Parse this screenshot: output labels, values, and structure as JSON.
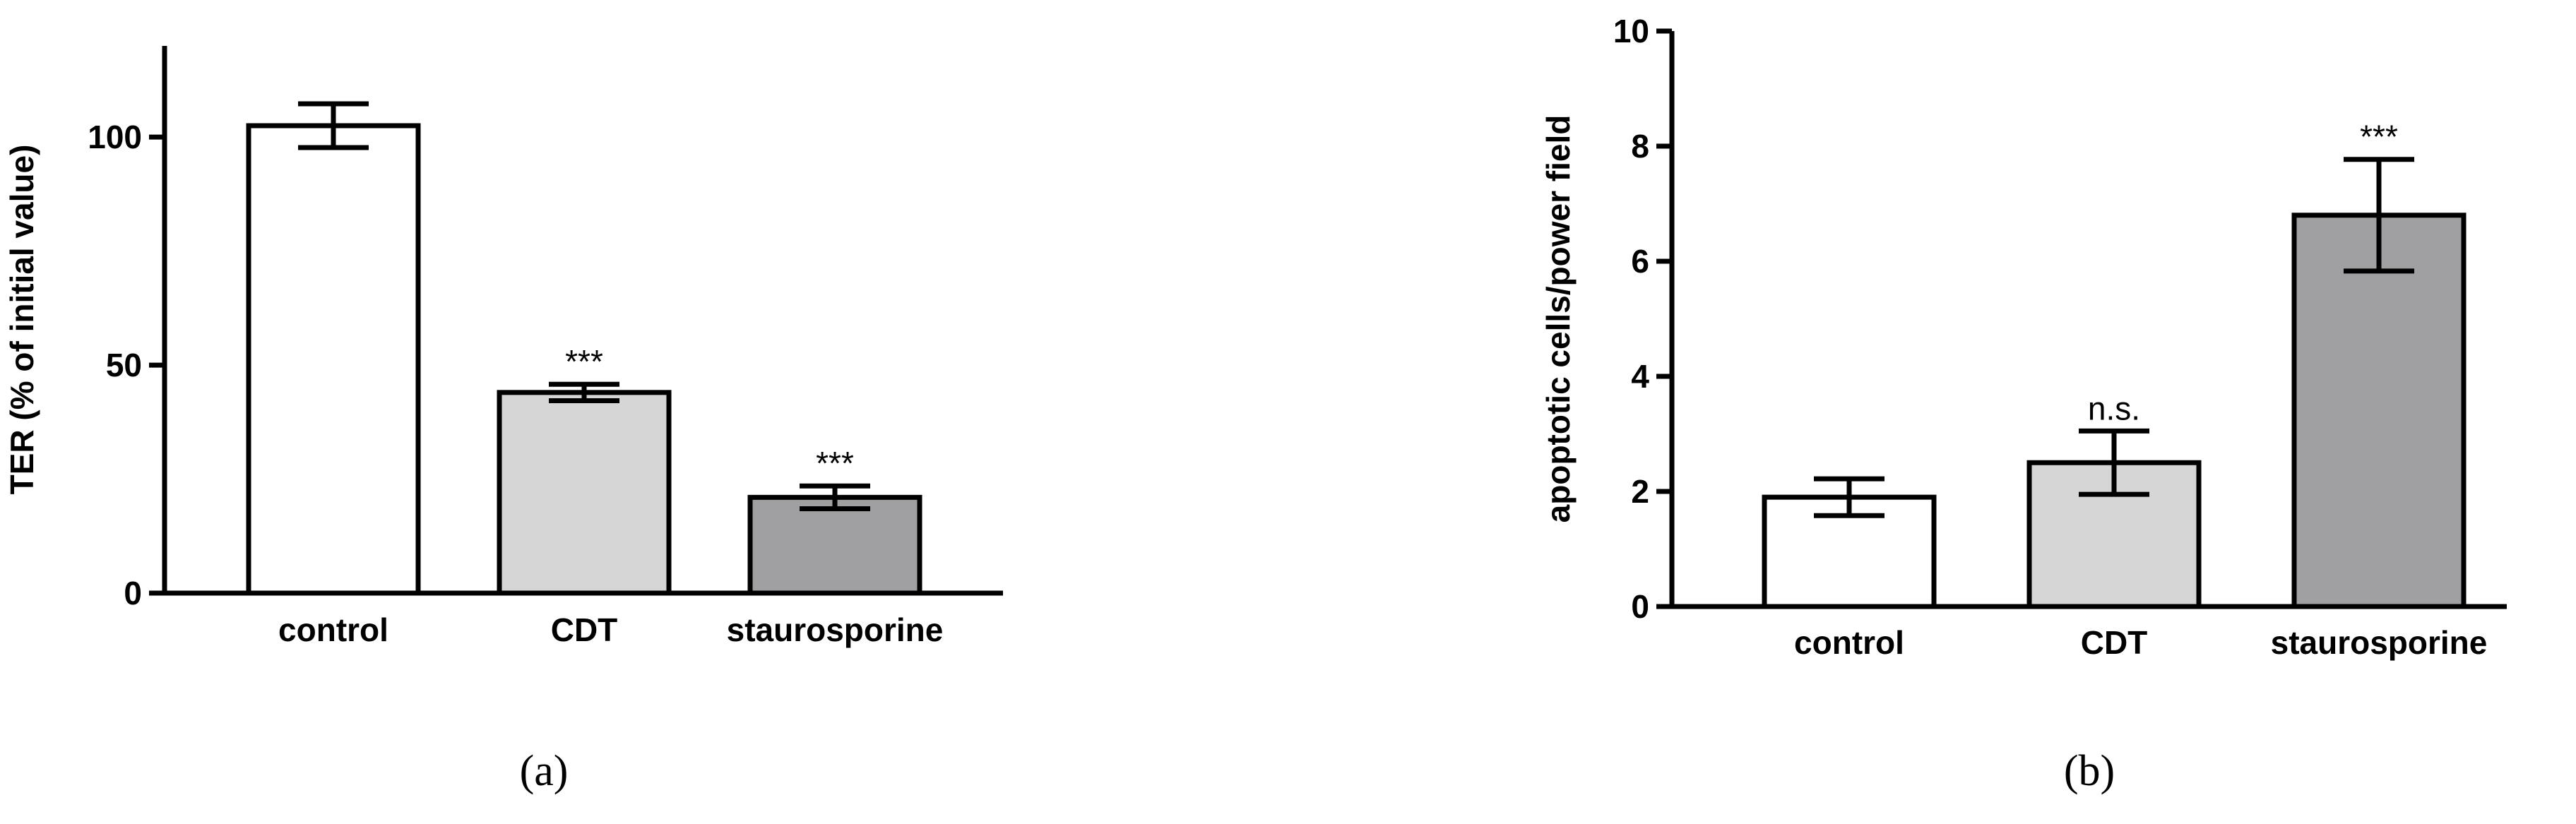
{
  "chart_data": [
    {
      "type": "bar",
      "label": "(a)",
      "y_label": "TER (% of initial value)",
      "categories": [
        "control",
        "CDT",
        "staurosporine"
      ],
      "values": [
        102.5,
        44,
        21
      ],
      "errors": [
        4.8,
        1.8,
        2.5
      ],
      "annotations": [
        null,
        "***",
        "***"
      ],
      "colors": [
        "#ffffff",
        "#d6d6d6",
        "#a0a0a3"
      ],
      "ylim": [
        0,
        120
      ],
      "yticks": [
        0,
        50,
        100
      ]
    },
    {
      "type": "bar",
      "label": "(b)",
      "y_label": "apoptotic cells/power field",
      "categories": [
        "control",
        "CDT",
        "staurosporine"
      ],
      "values": [
        1.9,
        2.5,
        6.8
      ],
      "errors": [
        0.32,
        0.55,
        0.97
      ],
      "annotations": [
        null,
        "n.s.",
        "***"
      ],
      "colors": [
        "#ffffff",
        "#d6d6d6",
        "#a0a0a3"
      ],
      "ylim": [
        0,
        10
      ],
      "yticks": [
        0,
        2,
        4,
        6,
        8,
        10
      ]
    }
  ]
}
